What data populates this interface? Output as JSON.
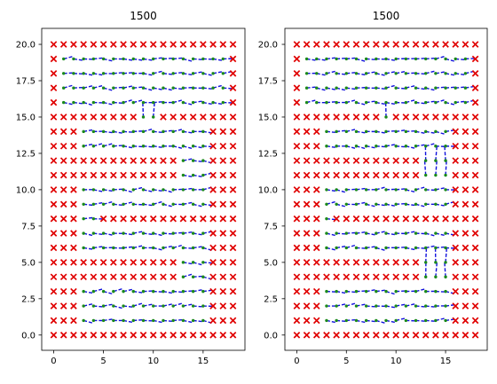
{
  "chart_data": [
    {
      "type": "scatter",
      "title": "1500",
      "xlim": [
        -1.2,
        19.2
      ],
      "ylim": [
        -1.05,
        21.1
      ],
      "x_ticks": [
        0,
        5,
        10,
        15
      ],
      "y_ticks": [
        "0.0",
        "2.5",
        "5.0",
        "7.5",
        "10.0",
        "12.5",
        "15.0",
        "17.5",
        "20.0"
      ],
      "y_tick_values": [
        0,
        2.5,
        5,
        7.5,
        10,
        12.5,
        15,
        17.5,
        20
      ],
      "grid": false,
      "series": [
        {
          "marker": "x",
          "color": "#e00000"
        },
        {
          "marker": "dot",
          "color": "#1a8a1a"
        },
        {
          "marker": "dashed-line",
          "color": "#1010dd"
        }
      ],
      "rows": {
        "20": "XXXXXXXXXXXXXXXXXXX",
        "19": "X>>>>>>>>>>>>>>>>>X",
        "18": "X>>>>>>>>>>>>>>>>>X",
        "17": "X>>>>>>>>>>>>>>>>>X",
        "16": "X>>>>>>>>>>>>>>>>>X",
        "15": "XXXXXXXXX^^XXXXXXXX",
        "14": "XXX>>>>>>>>>>>>>XXX",
        "13": "XXX>>>>>>>>>>>>>XXX",
        "12": "XXXXXXXXXXXXX>>>XXX",
        "11": "XXXXXXXXXXXXX>>>XXX",
        "10": "XXX>>>>>>>>>>>>>XXX",
        "9": "XXX>>>>>>>>>>>>>XXX",
        "8": "XXX>>XXXXXXXXXXXXXX",
        "7": "XXX>>>>>>>>>>>>>XXX",
        "6": "XXX>>>>>>>>>>>>>XXX",
        "5": "XXXXXXXXXXXXX>>>XXX",
        "4": "XXXXXXXXXXXXX>>>XXX",
        "3": "XXX>>>>>>>>>>>>>XXX",
        "2": "XXX>>>>>>>>>>>>>XXX",
        "1": "XXX>>>>>>>>>>>>>XXX",
        "0": "XXXXXXXXXXXXXXXXXXX"
      }
    },
    {
      "type": "scatter",
      "title": "1500",
      "xlim": [
        -1.2,
        19.2
      ],
      "ylim": [
        -1.05,
        21.1
      ],
      "x_ticks": [
        0,
        5,
        10,
        15
      ],
      "y_ticks": [
        "0.0",
        "2.5",
        "5.0",
        "7.5",
        "10.0",
        "12.5",
        "15.0",
        "17.5",
        "20.0"
      ],
      "y_tick_values": [
        0,
        2.5,
        5,
        7.5,
        10,
        12.5,
        15,
        17.5,
        20
      ],
      "grid": false,
      "series": [
        {
          "marker": "x",
          "color": "#e00000"
        },
        {
          "marker": "dot",
          "color": "#1a8a1a"
        },
        {
          "marker": "dashed-line",
          "color": "#1010dd"
        }
      ],
      "rows": {
        "20": "XXXXXXXXXXXXXXXXXXX",
        "19": "X>>>>>>>>>>>>>>>>>X",
        "18": "X>>>>>>>>>>>>>>>>>X",
        "17": "X>>>>>>>>>>>>>>>>>X",
        "16": "X>>>>>>>>>>>>>>>>>X",
        "15": "XXXXXXXXX^XXXXXXXXX",
        "14": "XXX>>>>>>>>>>>>>XXX",
        "13": "XXX>>>>>>>>>>>>>XXX",
        "12": "XXXXXXXXXXXXX^^^XXX",
        "11": "XXXXXXXXXXXXX^^^XXX",
        "10": "XXX>>>>>>>>>>>>>XXX",
        "9": "XXX>>>>>>>>>>>>>XXX",
        "8": "XXX>XXXXXXXXXXXXXXX",
        "7": "XXX>>>>>>>>>>>>>XXX",
        "6": "XXX>>>>>>>>>>>>>XXX",
        "5": "XXXXXXXXXXXXX^^^XXX",
        "4": "XXXXXXXXXXXXX^^^XXX",
        "3": "XXX>>>>>>>>>>>>>XXX",
        "2": "XXX>>>>>>>>>>>>>XXX",
        "1": "XXX>>>>>>>>>>>>>XXX",
        "0": "XXXXXXXXXXXXXXXXXXX"
      }
    }
  ]
}
